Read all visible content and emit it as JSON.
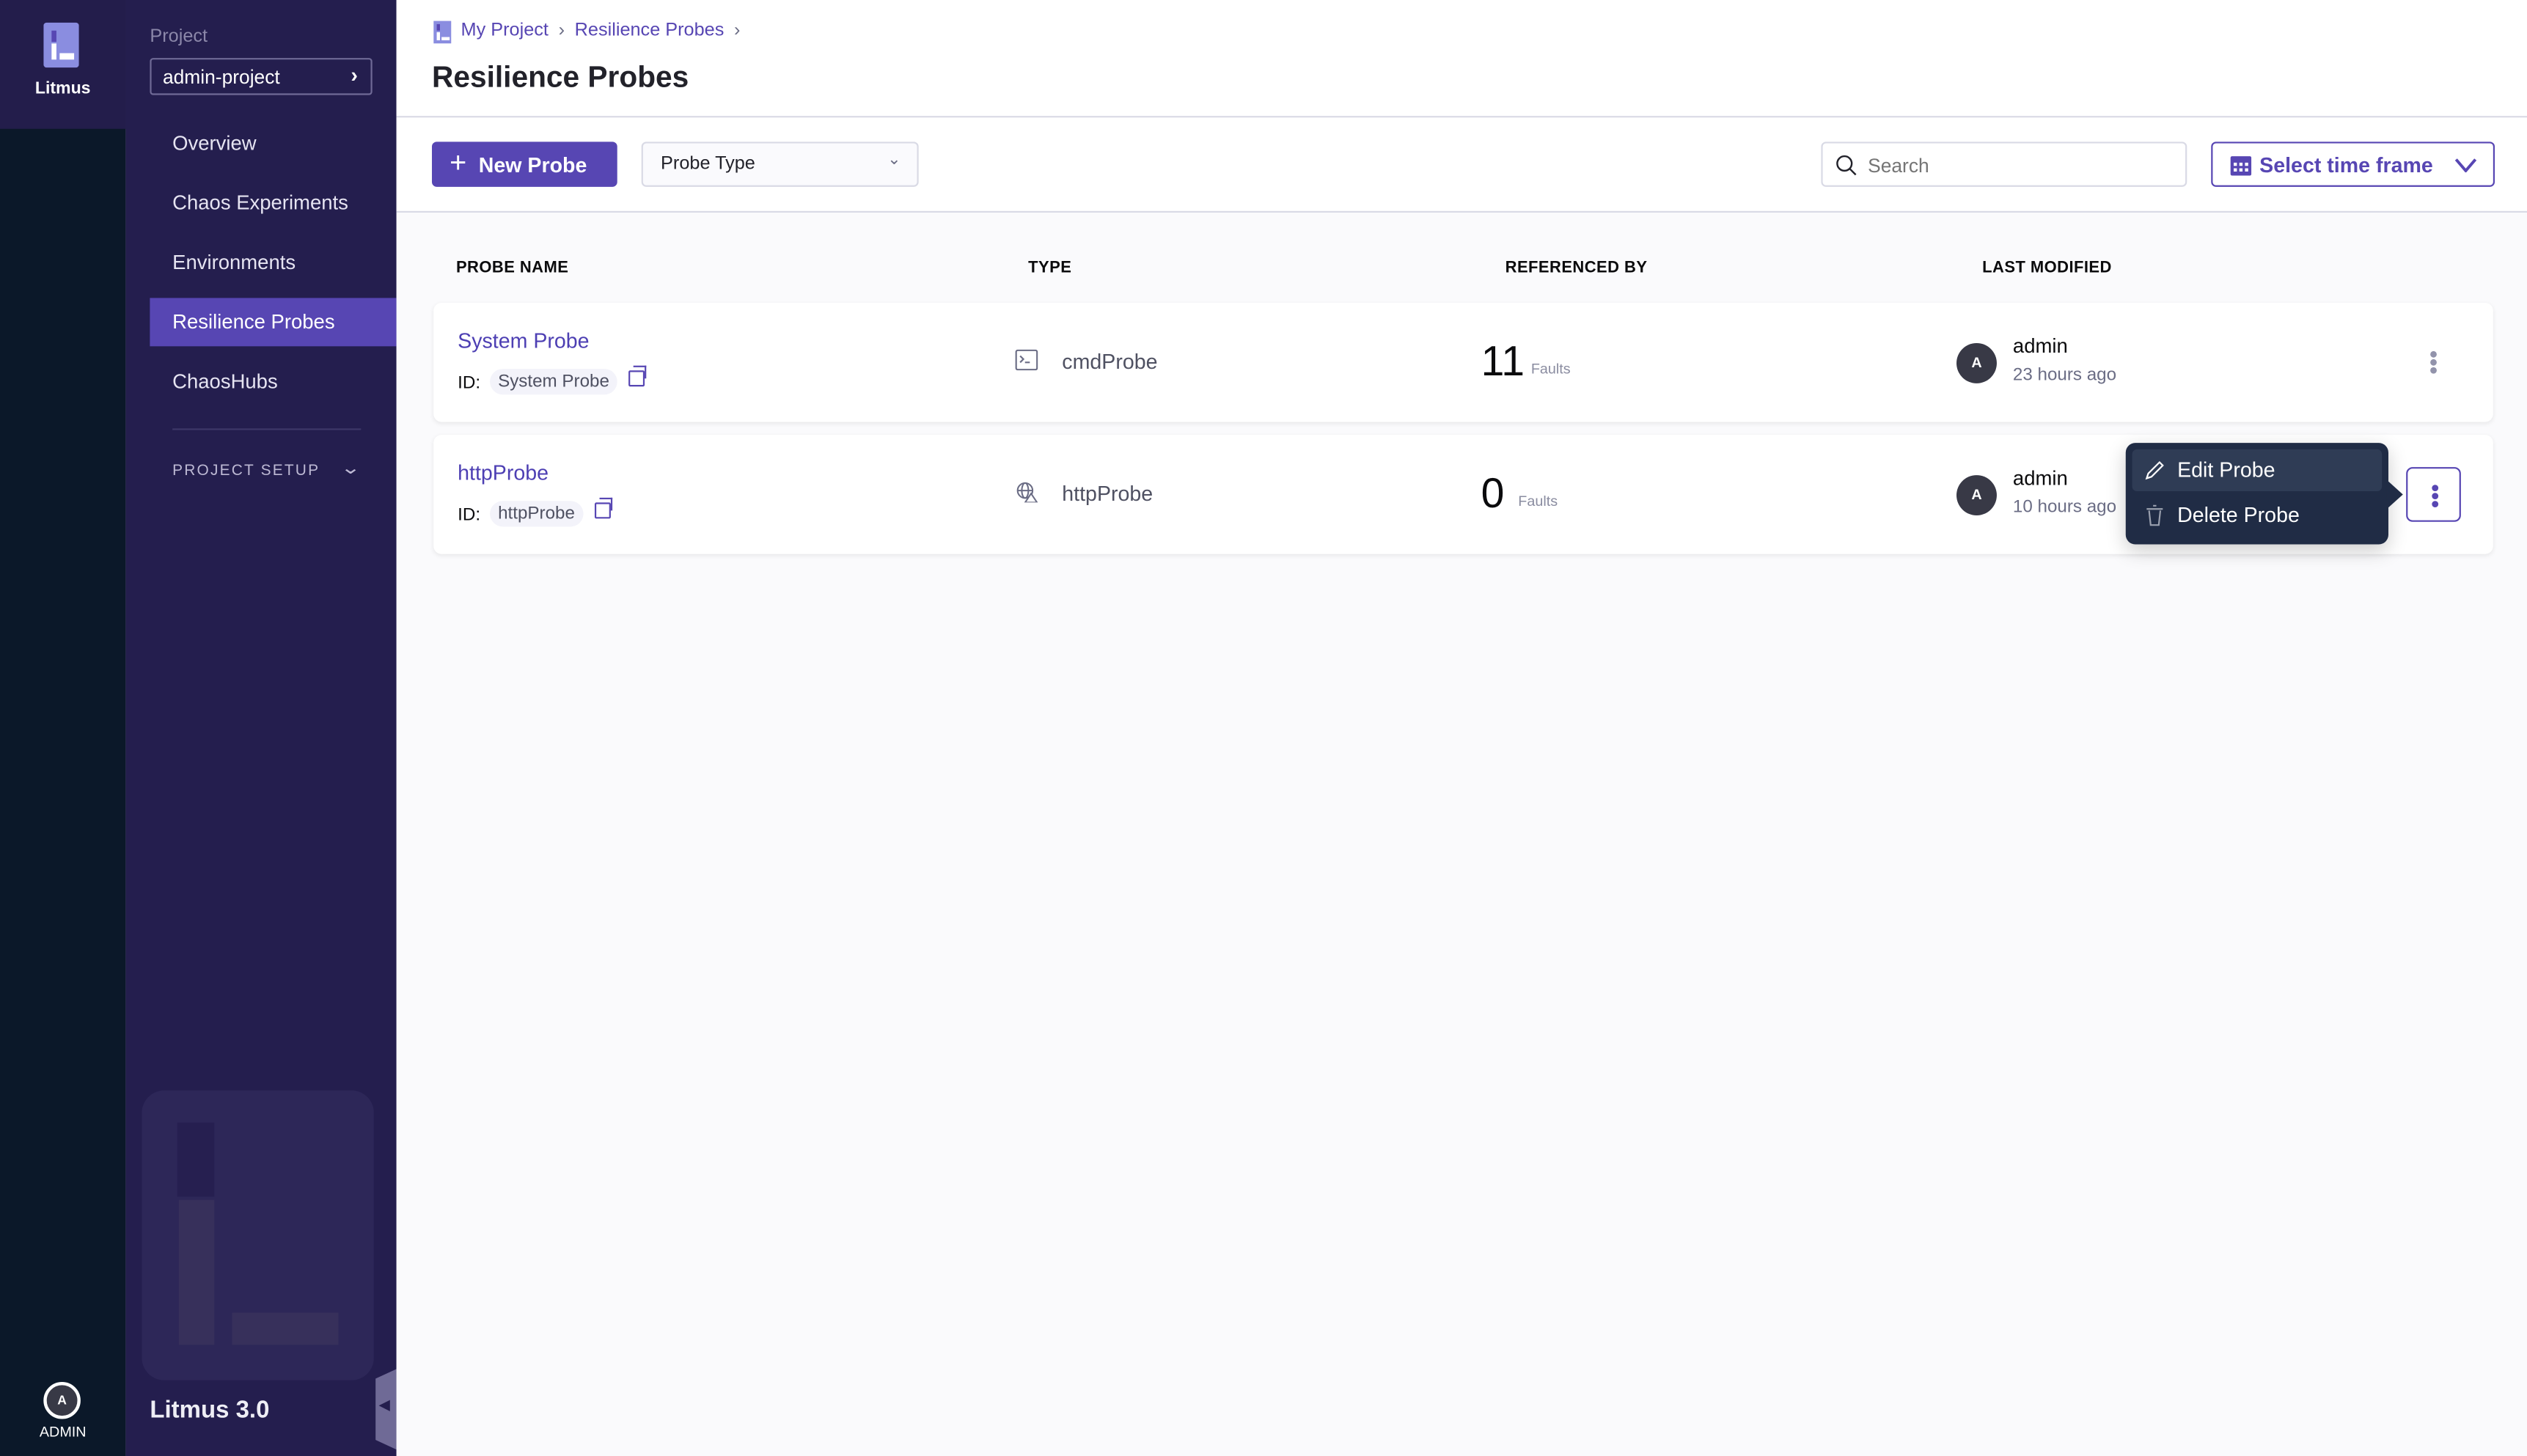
{
  "rail": {
    "brand": "Litmus",
    "user_initial": "A",
    "user_label": "ADMIN"
  },
  "sidebar": {
    "project_label": "Project",
    "project_name": "admin-project",
    "items": [
      {
        "label": "Overview"
      },
      {
        "label": "Chaos Experiments"
      },
      {
        "label": "Environments"
      },
      {
        "label": "Resilience Probes",
        "active": true
      },
      {
        "label": "ChaosHubs"
      }
    ],
    "section_label": "PROJECT SETUP",
    "version": "Litmus 3.0"
  },
  "header": {
    "breadcrumbs": [
      "My Project",
      "Resilience Probes"
    ],
    "title": "Resilience Probes"
  },
  "toolbar": {
    "new_probe_label": "New Probe",
    "probe_type_label": "Probe Type",
    "search_placeholder": "Search",
    "time_frame_label": "Select time frame"
  },
  "table": {
    "columns": [
      "PROBE NAME",
      "TYPE",
      "REFERENCED BY",
      "LAST MODIFIED"
    ],
    "id_label": "ID:",
    "rows": [
      {
        "name": "System Probe",
        "id": "System Probe",
        "type": "cmdProbe",
        "type_icon": "terminal-icon",
        "ref_count": "11",
        "ref_unit": "Faults",
        "user_initial": "A",
        "user": "admin",
        "modified": "23 hours ago"
      },
      {
        "name": "httpProbe",
        "id": "httpProbe",
        "type": "httpProbe",
        "type_icon": "globe-icon",
        "ref_count": "0",
        "ref_unit": "Faults",
        "user_initial": "A",
        "user": "admin",
        "modified": "10 hours ago"
      }
    ]
  },
  "menu": {
    "items": [
      {
        "label": "Edit Probe",
        "icon": "pencil-icon"
      },
      {
        "label": "Delete Probe",
        "icon": "trash-icon"
      }
    ]
  },
  "colors": {
    "accent": "#5746b3",
    "sidebar": "#241e4e",
    "rail": "#0b1829",
    "popover": "#202c45"
  }
}
